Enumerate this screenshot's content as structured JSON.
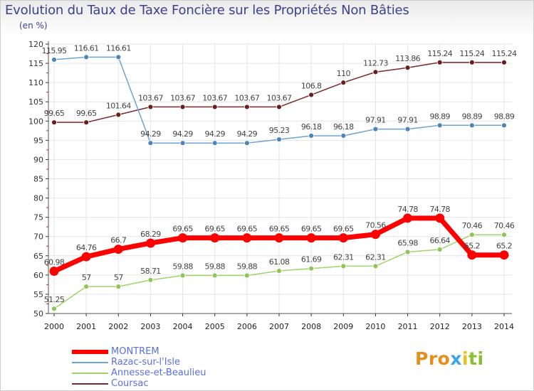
{
  "title": "Evolution du Taux de Taxe Foncière sur les Propriétés Non Bâties",
  "unit_label": "(en %)",
  "logo": {
    "text": "Proxiti",
    "parts": [
      "Pro",
      "x",
      "i",
      "ti"
    ]
  },
  "chart_data": {
    "type": "line",
    "title": "Evolution du Taux de Taxe Foncière sur les Propriétés Non Bâties",
    "ylabel": "(en %)",
    "ylim": [
      50,
      120
    ],
    "yticks": [
      50,
      55,
      60,
      65,
      70,
      75,
      80,
      85,
      90,
      95,
      100,
      105,
      110,
      115,
      120
    ],
    "grid": true,
    "legend_position": "bottom-left",
    "x": [
      "2000",
      "2001",
      "2002",
      "2003",
      "2004",
      "2005",
      "2006",
      "2007",
      "2008",
      "2009",
      "2010",
      "2011",
      "2012",
      "2013",
      "2014"
    ],
    "series": [
      {
        "name": "Coursac",
        "color": "#7a2a2a",
        "marker": "#6a1f1f",
        "width": 1.5,
        "r": 3.5,
        "values": [
          99.65,
          99.65,
          101.64,
          103.67,
          103.67,
          103.67,
          103.67,
          103.67,
          106.8,
          110,
          112.73,
          113.86,
          115.24,
          115.24,
          115.24
        ],
        "labels": [
          "99.65",
          "99.65",
          "101.64",
          "103.67",
          "103.67",
          "103.67",
          "103.67",
          "103.67",
          "106.8",
          "110",
          "112.73",
          "113.86",
          "115.24",
          "115.24",
          "115.24"
        ]
      },
      {
        "name": "Razac-sur-l'Isle",
        "color": "#6fa3d1",
        "marker": "#4d85b8",
        "width": 1.5,
        "r": 3.5,
        "values": [
          115.95,
          116.61,
          116.61,
          94.29,
          94.29,
          94.29,
          94.29,
          95.23,
          96.18,
          96.18,
          97.91,
          97.91,
          98.89,
          98.89,
          98.89
        ],
        "labels": [
          "115.95",
          "116.61",
          "116.61",
          "94.29",
          "94.29",
          "94.29",
          "94.29",
          "95.23",
          "96.18",
          "96.18",
          "97.91",
          "97.91",
          "98.89",
          "98.89",
          "98.89"
        ]
      },
      {
        "name": "Annesse-et-Beaulieu",
        "color": "#9fd46a",
        "marker": "#8cc657",
        "width": 1.5,
        "r": 3.5,
        "values": [
          51.25,
          57,
          57,
          58.71,
          59.88,
          59.88,
          59.88,
          61.08,
          61.69,
          62.31,
          62.31,
          65.98,
          66.64,
          70.46,
          70.46
        ],
        "labels": [
          "51.25",
          "57",
          "57",
          "58.71",
          "59.88",
          "59.88",
          "59.88",
          "61.08",
          "61.69",
          "62.31",
          "62.31",
          "65.98",
          "66.64",
          "70.46",
          "70.46"
        ]
      },
      {
        "name": "MONTREM",
        "color": "#ff0000",
        "marker": "#ff0000",
        "width": 7,
        "r": 6.5,
        "values": [
          60.98,
          64.76,
          66.7,
          68.29,
          69.65,
          69.65,
          69.65,
          69.65,
          69.65,
          69.65,
          70.56,
          74.78,
          74.78,
          65.2,
          65.2
        ],
        "labels": [
          "60.98",
          "64.76",
          "66.7",
          "68.29",
          "69.65",
          "69.65",
          "69.65",
          "69.65",
          "69.65",
          "69.65",
          "70.56",
          "74.78",
          "74.78",
          "65.2",
          "65.2"
        ]
      }
    ],
    "legend": [
      {
        "name": "MONTREM",
        "color": "#ff0000"
      },
      {
        "name": "Razac-sur-l'Isle",
        "color": "#6fa3d1"
      },
      {
        "name": "Annesse-et-Beaulieu",
        "color": "#9fd46a"
      },
      {
        "name": "Coursac",
        "color": "#7a2a2a"
      }
    ]
  }
}
